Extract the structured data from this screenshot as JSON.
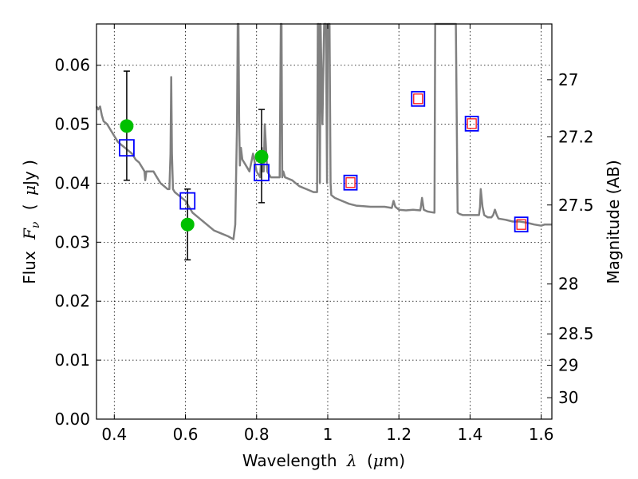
{
  "chart_data": {
    "type": "scatter",
    "x_axis": {
      "label_prefix": "Wavelength",
      "label_symbol": "λ",
      "label_open": "(",
      "label_mu": "μ",
      "label_unit": "m)",
      "range": [
        0.35,
        1.63
      ],
      "ticks": [
        0.4,
        0.6,
        0.8,
        1.0,
        1.2,
        1.4,
        1.6
      ],
      "tick_labels": [
        "0.4",
        "0.6",
        "0.8",
        "1",
        "1.2",
        "1.4",
        "1.6"
      ]
    },
    "y_axis": {
      "label_prefix": "Flux",
      "label_symbol": "F",
      "label_sub": "ν",
      "label_unit_open": "(",
      "label_mu": "μ",
      "label_unit": "Jy )",
      "range": [
        0.0,
        0.067
      ],
      "ticks": [
        0.0,
        0.01,
        0.02,
        0.03,
        0.04,
        0.05,
        0.06
      ],
      "tick_labels": [
        "0.00",
        "0.01",
        "0.02",
        "0.03",
        "0.04",
        "0.05",
        "0.06"
      ]
    },
    "y2_axis": {
      "label": "Magnitude (AB)",
      "ticks": [
        27,
        27.2,
        27.5,
        28,
        28.5,
        29,
        30
      ],
      "tick_labels": [
        "27",
        "27.2",
        "27.5",
        "28",
        "28.5",
        "29",
        "30"
      ]
    },
    "grid": true,
    "colors": {
      "sed": "#808080",
      "observed": "#00c000",
      "model_box": "#0000ff",
      "prediction_box": "#ff0000",
      "errorbar": "#000000"
    },
    "sed_spectrum": {
      "x": [
        0.35,
        0.355,
        0.36,
        0.365,
        0.37,
        0.38,
        0.39,
        0.4,
        0.41,
        0.42,
        0.43,
        0.44,
        0.45,
        0.46,
        0.47,
        0.48,
        0.485,
        0.487,
        0.49,
        0.5,
        0.51,
        0.52,
        0.53,
        0.54,
        0.55,
        0.555,
        0.558,
        0.56,
        0.562,
        0.565,
        0.57,
        0.58,
        0.59,
        0.6,
        0.61,
        0.62,
        0.64,
        0.66,
        0.68,
        0.7,
        0.72,
        0.735,
        0.74,
        0.745,
        0.747,
        0.749,
        0.751,
        0.753,
        0.756,
        0.76,
        0.77,
        0.78,
        0.79,
        0.8,
        0.81,
        0.815,
        0.817,
        0.82,
        0.823,
        0.83,
        0.84,
        0.85,
        0.86,
        0.865,
        0.868,
        0.87,
        0.872,
        0.875,
        0.88,
        0.9,
        0.92,
        0.94,
        0.96,
        0.97,
        0.972,
        0.975,
        0.978,
        0.98,
        0.985,
        0.99,
        0.995,
        0.998,
        1.0,
        1.002,
        1.005,
        1.008,
        1.01,
        1.02,
        1.04,
        1.06,
        1.08,
        1.1,
        1.12,
        1.14,
        1.16,
        1.18,
        1.185,
        1.19,
        1.2,
        1.22,
        1.24,
        1.26,
        1.262,
        1.265,
        1.27,
        1.28,
        1.29,
        1.3,
        1.302,
        1.305,
        1.31,
        1.33,
        1.35,
        1.36,
        1.365,
        1.37,
        1.38,
        1.4,
        1.42,
        1.425,
        1.428,
        1.43,
        1.435,
        1.44,
        1.45,
        1.46,
        1.465,
        1.47,
        1.475,
        1.48,
        1.5,
        1.52,
        1.54,
        1.56,
        1.58,
        1.6,
        1.61,
        1.63
      ],
      "y": [
        0.053,
        0.0525,
        0.053,
        0.0515,
        0.0505,
        0.05,
        0.049,
        0.048,
        0.047,
        0.0465,
        0.046,
        0.0455,
        0.045,
        0.044,
        0.0435,
        0.0425,
        0.042,
        0.0405,
        0.042,
        0.042,
        0.042,
        0.041,
        0.04,
        0.0395,
        0.039,
        0.039,
        0.045,
        0.058,
        0.045,
        0.039,
        0.0385,
        0.038,
        0.0375,
        0.037,
        0.036,
        0.035,
        0.034,
        0.033,
        0.032,
        0.0315,
        0.031,
        0.0305,
        0.033,
        0.05,
        0.07,
        0.07,
        0.05,
        0.043,
        0.046,
        0.044,
        0.043,
        0.042,
        0.045,
        0.042,
        0.041,
        0.046,
        0.042,
        0.042,
        0.05,
        0.042,
        0.041,
        0.041,
        0.041,
        0.041,
        0.07,
        0.07,
        0.041,
        0.042,
        0.041,
        0.0405,
        0.0395,
        0.039,
        0.0385,
        0.0385,
        0.07,
        0.07,
        0.04,
        0.07,
        0.05,
        0.07,
        0.07,
        0.04,
        0.07,
        0.07,
        0.07,
        0.04,
        0.038,
        0.0375,
        0.037,
        0.0365,
        0.0362,
        0.0361,
        0.036,
        0.036,
        0.036,
        0.0358,
        0.037,
        0.036,
        0.0355,
        0.0354,
        0.0355,
        0.0354,
        0.036,
        0.0375,
        0.0355,
        0.0352,
        0.0351,
        0.035,
        0.07,
        0.07,
        0.07,
        0.07,
        0.07,
        0.07,
        0.035,
        0.0348,
        0.0346,
        0.0346,
        0.0346,
        0.0346,
        0.036,
        0.039,
        0.036,
        0.0346,
        0.0342,
        0.0342,
        0.0346,
        0.0355,
        0.0346,
        0.034,
        0.0338,
        0.0335,
        0.0335,
        0.0333,
        0.033,
        0.0328,
        0.033,
        0.033
      ]
    },
    "observed_points": [
      {
        "x": 0.435,
        "y": 0.0497,
        "yerr_low": 0.0405,
        "yerr_high": 0.059
      },
      {
        "x": 0.606,
        "y": 0.033,
        "yerr_low": 0.027,
        "yerr_high": 0.039
      },
      {
        "x": 0.814,
        "y": 0.0445,
        "yerr_low": 0.0367,
        "yerr_high": 0.0525
      }
    ],
    "model_boxes": [
      {
        "x": 0.435,
        "y": 0.046
      },
      {
        "x": 0.606,
        "y": 0.037
      },
      {
        "x": 0.814,
        "y": 0.0418
      }
    ],
    "prediction_boxes": [
      {
        "x": 1.064,
        "y": 0.0401
      },
      {
        "x": 1.254,
        "y": 0.0543
      },
      {
        "x": 1.405,
        "y": 0.0501
      },
      {
        "x": 1.544,
        "y": 0.033
      }
    ]
  }
}
